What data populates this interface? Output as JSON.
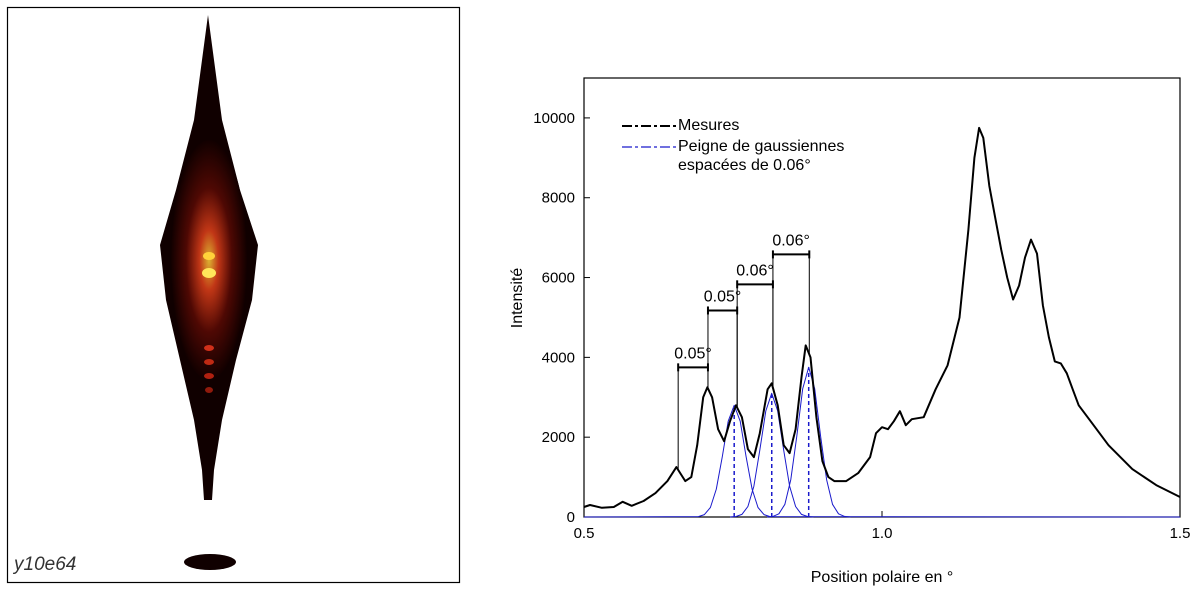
{
  "image": {
    "label": "y10e64"
  },
  "chart_data": {
    "type": "line",
    "xlabel": "Position polaire en °",
    "ylabel": "Intensité",
    "xlim": [
      0.5,
      1.5
    ],
    "xticks": [
      0.5,
      {
        "value": 1,
        "label": "1.0"
      },
      1.5
    ],
    "ylim": [
      0,
      11000
    ],
    "yticks": [
      0,
      2000,
      4000,
      6000,
      8000,
      10000
    ],
    "series": [
      {
        "name": "Mesures",
        "color": "#000000",
        "x": [
          0.5,
          0.51,
          0.53,
          0.55,
          0.565,
          0.58,
          0.6,
          0.62,
          0.64,
          0.655,
          0.67,
          0.68,
          0.69,
          0.7,
          0.707,
          0.715,
          0.725,
          0.735,
          0.745,
          0.755,
          0.765,
          0.775,
          0.785,
          0.795,
          0.808,
          0.815,
          0.825,
          0.835,
          0.845,
          0.855,
          0.865,
          0.872,
          0.88,
          0.89,
          0.9,
          0.91,
          0.92,
          0.94,
          0.96,
          0.98,
          0.99,
          1.0,
          1.01,
          1.02,
          1.03,
          1.04,
          1.05,
          1.07,
          1.09,
          1.11,
          1.13,
          1.145,
          1.155,
          1.163,
          1.17,
          1.18,
          1.19,
          1.2,
          1.21,
          1.22,
          1.23,
          1.24,
          1.25,
          1.26,
          1.27,
          1.28,
          1.29,
          1.3,
          1.31,
          1.32,
          1.33,
          1.35,
          1.38,
          1.42,
          1.46,
          1.5
        ],
        "values": [
          250,
          300,
          230,
          250,
          380,
          280,
          400,
          600,
          900,
          1250,
          900,
          1000,
          1800,
          3000,
          3250,
          3000,
          2200,
          1900,
          2400,
          2800,
          2500,
          1700,
          1500,
          2100,
          3200,
          3350,
          2800,
          1800,
          1600,
          2200,
          3500,
          4300,
          4000,
          2500,
          1400,
          1000,
          900,
          900,
          1100,
          1500,
          2100,
          2250,
          2200,
          2400,
          2650,
          2300,
          2450,
          2500,
          3200,
          3800,
          5000,
          7200,
          9000,
          9750,
          9500,
          8300,
          7500,
          6700,
          6000,
          5450,
          5800,
          6500,
          6950,
          6600,
          5300,
          4500,
          3900,
          3850,
          3600,
          3200,
          2800,
          2400,
          1800,
          1200,
          800,
          500
        ]
      },
      {
        "name": "Peigne de gaussiennes espacées de 0.06°",
        "color": "#1a1acc",
        "x": [
          0.5,
          0.692,
          0.702,
          0.712,
          0.722,
          0.732,
          0.742,
          0.752,
          0.762,
          0.772,
          0.782,
          0.792,
          0.802,
          0.812,
          1.5
        ],
        "values": [
          0,
          11,
          59,
          238,
          700,
          1512,
          2400,
          2800,
          2400,
          1512,
          700,
          238,
          59,
          11,
          0
        ]
      },
      {
        "color": "#1a1acc",
        "x": [
          0.745,
          0.755,
          0.765,
          0.775,
          0.785,
          0.795,
          0.805,
          0.815,
          0.825,
          0.835,
          0.845,
          0.855,
          0.865,
          0.875,
          0.885
        ],
        "values": [
          0,
          12,
          65,
          264,
          775,
          1674,
          2657,
          3100,
          2657,
          1674,
          775,
          264,
          65,
          12,
          0
        ]
      },
      {
        "color": "#1a1acc",
        "x": [
          0.807,
          0.817,
          0.827,
          0.837,
          0.847,
          0.857,
          0.867,
          0.877,
          0.887,
          0.897,
          0.907,
          0.917,
          0.927,
          0.937,
          0.947
        ],
        "values": [
          0,
          15,
          79,
          319,
          938,
          2025,
          3214,
          3750,
          3214,
          2025,
          938,
          319,
          79,
          15,
          0
        ]
      }
    ],
    "annotations": [
      {
        "text": "0.05°",
        "x": [
          0.658,
          0.708
        ],
        "y": 3750
      },
      {
        "text": "0.05°",
        "x": [
          0.708,
          0.757
        ],
        "y": 5175
      },
      {
        "text": "0.06°",
        "x": [
          0.757,
          0.817
        ],
        "y": 5830
      },
      {
        "text": "0.06°",
        "x": [
          0.817,
          0.878
        ],
        "y": 6580
      }
    ]
  }
}
